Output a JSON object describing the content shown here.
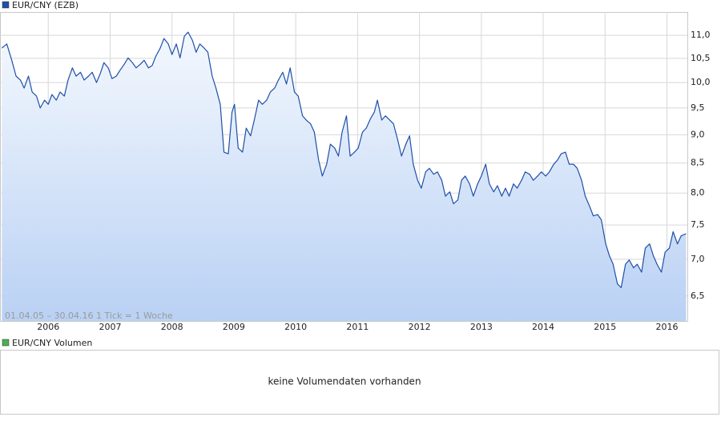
{
  "chart_data": {
    "type": "line",
    "legend": "EUR/CNY (EZB)",
    "annotation": "01.04.05 – 30.04.16   1 Tick = 1 Woche",
    "log_scale": true,
    "grid": true,
    "area_fill": true,
    "xlim": [
      2005.22,
      2016.33
    ],
    "xticks": [
      2006,
      2007,
      2008,
      2009,
      2010,
      2011,
      2012,
      2013,
      2014,
      2015,
      2016
    ],
    "ylim": [
      6.18,
      11.53
    ],
    "yticks": [
      {
        "value": 6.5,
        "label": "6,5"
      },
      {
        "value": 7,
        "label": "7,0"
      },
      {
        "value": 7.5,
        "label": "7,5"
      },
      {
        "value": 8,
        "label": "8,0"
      },
      {
        "value": 8.5,
        "label": "8,5"
      },
      {
        "value": 9,
        "label": "9,0"
      },
      {
        "value": 9.5,
        "label": "9,5"
      },
      {
        "value": 10,
        "label": "10,0"
      },
      {
        "value": 10.5,
        "label": "10,5"
      },
      {
        "value": 11,
        "label": "11,0"
      }
    ],
    "x": [
      2005.25,
      2005.33,
      2005.41,
      2005.48,
      2005.55,
      2005.61,
      2005.68,
      2005.74,
      2005.81,
      2005.87,
      2005.94,
      2006.0,
      2006.06,
      2006.13,
      2006.19,
      2006.26,
      2006.32,
      2006.39,
      2006.45,
      2006.52,
      2006.58,
      2006.65,
      2006.71,
      2006.78,
      2006.84,
      2006.9,
      2006.97,
      2007.03,
      2007.1,
      2007.16,
      2007.23,
      2007.29,
      2007.36,
      2007.42,
      2007.49,
      2007.55,
      2007.62,
      2007.68,
      2007.74,
      2007.81,
      2007.87,
      2007.94,
      2008.0,
      2008.07,
      2008.13,
      2008.2,
      2008.26,
      2008.33,
      2008.39,
      2008.45,
      2008.52,
      2008.58,
      2008.65,
      2008.71,
      2008.78,
      2008.84,
      2008.91,
      2008.97,
      2009.01,
      2009.07,
      2009.14,
      2009.2,
      2009.27,
      2009.33,
      2009.4,
      2009.46,
      2009.53,
      2009.59,
      2009.66,
      2009.72,
      2009.79,
      2009.85,
      2009.91,
      2009.98,
      2010.04,
      2010.11,
      2010.17,
      2010.24,
      2010.3,
      2010.37,
      2010.43,
      2010.5,
      2010.56,
      2010.63,
      2010.69,
      2010.75,
      2010.82,
      2010.88,
      2010.95,
      2011.01,
      2011.08,
      2011.14,
      2011.21,
      2011.27,
      2011.32,
      2011.39,
      2011.45,
      2011.52,
      2011.58,
      2011.65,
      2011.71,
      2011.78,
      2011.84,
      2011.9,
      2011.97,
      2012.03,
      2012.1,
      2012.16,
      2012.23,
      2012.29,
      2012.36,
      2012.42,
      2012.49,
      2012.55,
      2012.62,
      2012.68,
      2012.74,
      2012.81,
      2012.87,
      2012.94,
      2013.0,
      2013.07,
      2013.13,
      2013.2,
      2013.26,
      2013.33,
      2013.39,
      2013.45,
      2013.52,
      2013.58,
      2013.65,
      2013.71,
      2013.78,
      2013.84,
      2013.91,
      2013.97,
      2014.04,
      2014.1,
      2014.17,
      2014.23,
      2014.29,
      2014.36,
      2014.42,
      2014.49,
      2014.55,
      2014.62,
      2014.68,
      2014.75,
      2014.81,
      2014.88,
      2014.94,
      2015.01,
      2015.07,
      2015.13,
      2015.2,
      2015.26,
      2015.33,
      2015.39,
      2015.46,
      2015.52,
      2015.59,
      2015.65,
      2015.72,
      2015.78,
      2015.84,
      2015.91,
      2015.97,
      2016.04,
      2016.1,
      2016.17,
      2016.23,
      2016.31
    ],
    "series": [
      {
        "name": "EUR/CNY (EZB)",
        "color": "#1f4fa8",
        "values": [
          10.72,
          10.81,
          10.46,
          10.13,
          10.05,
          9.89,
          10.13,
          9.81,
          9.73,
          9.5,
          9.65,
          9.57,
          9.76,
          9.65,
          9.81,
          9.73,
          10.05,
          10.3,
          10.13,
          10.21,
          10.05,
          10.13,
          10.21,
          10.0,
          10.18,
          10.41,
          10.3,
          10.08,
          10.13,
          10.25,
          10.38,
          10.51,
          10.41,
          10.3,
          10.38,
          10.46,
          10.3,
          10.35,
          10.55,
          10.72,
          10.93,
          10.81,
          10.58,
          10.81,
          10.51,
          10.98,
          11.07,
          10.89,
          10.63,
          10.81,
          10.72,
          10.63,
          10.13,
          9.89,
          9.57,
          8.69,
          8.66,
          9.42,
          9.57,
          8.76,
          8.69,
          9.12,
          8.98,
          9.27,
          9.65,
          9.57,
          9.65,
          9.81,
          9.89,
          10.05,
          10.21,
          9.97,
          10.3,
          9.81,
          9.73,
          9.35,
          9.27,
          9.2,
          9.05,
          8.55,
          8.28,
          8.48,
          8.83,
          8.76,
          8.62,
          9.05,
          9.35,
          8.62,
          8.69,
          8.76,
          9.05,
          9.12,
          9.3,
          9.42,
          9.65,
          9.27,
          9.35,
          9.27,
          9.2,
          8.9,
          8.62,
          8.83,
          8.98,
          8.48,
          8.21,
          8.08,
          8.35,
          8.41,
          8.31,
          8.35,
          8.21,
          7.95,
          8.02,
          7.83,
          7.89,
          8.21,
          8.28,
          8.15,
          7.95,
          8.15,
          8.28,
          8.48,
          8.15,
          8.02,
          8.12,
          7.95,
          8.08,
          7.95,
          8.15,
          8.08,
          8.21,
          8.35,
          8.31,
          8.21,
          8.28,
          8.35,
          8.28,
          8.35,
          8.48,
          8.55,
          8.66,
          8.69,
          8.48,
          8.48,
          8.41,
          8.21,
          7.95,
          7.79,
          7.64,
          7.66,
          7.58,
          7.22,
          7.05,
          6.93,
          6.66,
          6.61,
          6.93,
          6.99,
          6.88,
          6.93,
          6.82,
          7.16,
          7.22,
          7.05,
          6.93,
          6.82,
          7.1,
          7.16,
          7.4,
          7.22,
          7.34,
          7.37
        ]
      }
    ]
  },
  "volume_panel": {
    "legend": "EUR/CNY Volumen",
    "color": "#4caf50",
    "message": "keine Volumendaten vorhanden"
  }
}
